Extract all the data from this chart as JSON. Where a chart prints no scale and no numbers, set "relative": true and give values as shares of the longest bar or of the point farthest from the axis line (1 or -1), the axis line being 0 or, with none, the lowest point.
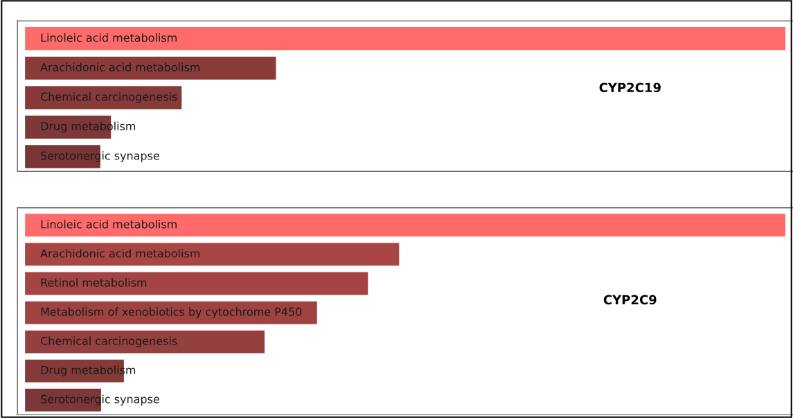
{
  "chart_data": [
    {
      "type": "bar",
      "orientation": "horizontal",
      "relative": true,
      "categories": [
        "Linoleic acid metabolism",
        "Arachidonic acid metabolism",
        "Chemical carcinogenesis",
        "Drug metabolism",
        "Serotonergic synapse"
      ],
      "values": [
        1,
        0.33,
        0.206,
        0.113,
        0.099
      ],
      "colors": [
        "#ff6b6b",
        "#8c3b3b",
        "#873a3a",
        "#7f3838",
        "#7a3636"
      ],
      "annotations": [
        "CYP2C19"
      ]
    },
    {
      "type": "bar",
      "orientation": "horizontal",
      "relative": true,
      "categories": [
        "Linoleic acid metabolism",
        "Arachidonic acid metabolism",
        "Retinol metabolism",
        "Metabolism of xenobiotics by cytochrome P450",
        "Chemical carcinogenesis",
        "Drug metabolism",
        "Serotonergic synapse"
      ],
      "values": [
        1,
        0.492,
        0.451,
        0.384,
        0.315,
        0.13,
        0.1
      ],
      "colors": [
        "#ff6b6b",
        "#a84545",
        "#a54444",
        "#9e4242",
        "#954040",
        "#853a3a",
        "#7c3737"
      ],
      "annotations": [
        "CYP2C9"
      ]
    }
  ]
}
